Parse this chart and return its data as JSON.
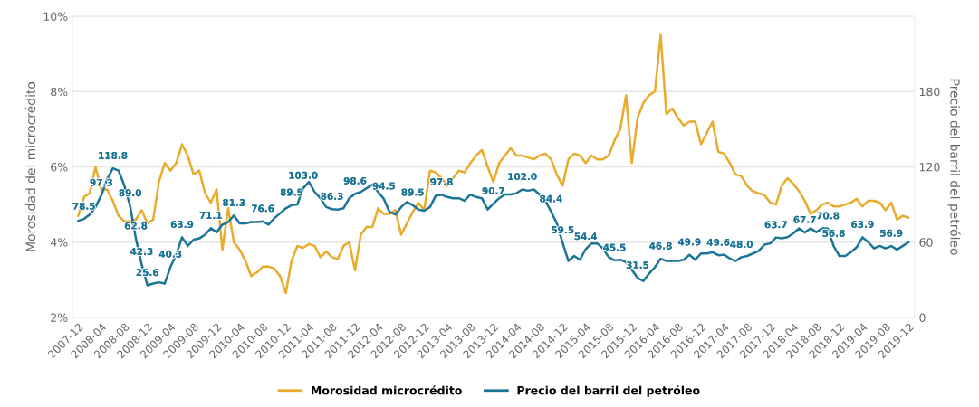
{
  "chart_data": {
    "type": "line",
    "ylabel": "Morosidad del microcrédito",
    "y2label": "Precio del barril del petróleo",
    "categories": [
      "2007-12",
      null,
      null,
      null,
      "2008-04",
      null,
      null,
      null,
      "2008-08",
      null,
      null,
      null,
      "2008-12",
      null,
      null,
      null,
      "2009-04",
      null,
      null,
      null,
      "2009-08",
      null,
      null,
      null,
      "2009-12",
      null,
      null,
      null,
      "2010-04",
      null,
      null,
      null,
      "2010-08",
      null,
      null,
      null,
      "2010-12",
      null,
      null,
      null,
      "2011-04",
      null,
      null,
      null,
      "2011-08",
      null,
      null,
      null,
      "2011-12",
      null,
      null,
      null,
      "2012-04",
      null,
      null,
      null,
      "2012-08",
      null,
      null,
      null,
      "2012-12",
      null,
      null,
      null,
      "2013-04",
      null,
      null,
      null,
      "2013-08",
      null,
      null,
      null,
      "2013-12",
      null,
      null,
      null,
      "2014-04",
      null,
      null,
      null,
      "2014-08",
      null,
      null,
      null,
      "2014-12",
      null,
      null,
      null,
      "2015-04",
      null,
      null,
      null,
      "2015-08",
      null,
      null,
      null,
      "2015-12",
      null,
      null,
      null,
      "2016-04",
      null,
      null,
      null,
      "2016-08",
      null,
      null,
      null,
      "2016-12",
      null,
      null,
      null,
      "2017-04",
      null,
      null,
      null,
      "2017-08",
      null,
      null,
      null,
      "2017-12",
      null,
      null,
      null,
      "2018-04",
      null,
      null,
      null,
      "2018-08",
      null,
      null,
      null,
      "2018-12",
      null,
      null,
      null,
      "2019-04",
      null,
      null,
      null,
      "2019-08",
      null,
      null,
      null,
      "2019-12"
    ],
    "series": [
      {
        "name": "Morosidad microcrédito",
        "color": "#e8ab2c",
        "values": [
          4.7,
          5.2,
          5.3,
          6.0,
          5.4,
          5.4,
          5.1,
          4.7,
          4.55,
          4.55,
          4.6,
          4.85,
          4.5,
          4.6,
          5.6,
          6.1,
          5.9,
          6.1,
          6.6,
          6.3,
          5.8,
          5.9,
          5.3,
          5.05,
          5.4,
          3.8,
          4.9,
          4.0,
          3.8,
          3.5,
          3.1,
          3.2,
          3.35,
          3.35,
          3.3,
          3.1,
          2.65,
          3.5,
          3.9,
          3.85,
          3.95,
          3.9,
          3.6,
          3.75,
          3.6,
          3.55,
          3.9,
          4.0,
          3.25,
          4.2,
          4.4,
          4.4,
          4.9,
          4.75,
          4.75,
          4.85,
          4.2,
          4.5,
          4.8,
          5.05,
          4.85,
          5.9,
          5.85,
          5.7,
          5.5,
          5.7,
          5.9,
          5.85,
          6.1,
          6.3,
          6.45,
          6.0,
          5.6,
          6.1,
          6.3,
          6.5,
          6.3,
          6.3,
          6.25,
          6.2,
          6.3,
          6.35,
          6.2,
          5.8,
          5.5,
          6.2,
          6.35,
          6.3,
          6.1,
          6.3,
          6.2,
          6.2,
          6.3,
          6.7,
          7.0,
          7.9,
          6.1,
          7.3,
          7.7,
          7.9,
          8.0,
          9.5,
          7.4,
          7.55,
          7.3,
          7.1,
          7.2,
          7.2,
          6.6,
          6.9,
          7.2,
          6.4,
          6.35,
          6.1,
          5.8,
          5.75,
          5.5,
          5.35,
          5.3,
          5.25,
          5.05,
          5.0,
          5.5,
          5.7,
          5.55,
          5.35,
          5.1,
          4.75,
          4.85,
          5.0,
          5.05,
          4.95,
          4.95,
          5.0,
          5.05,
          5.15,
          4.95,
          5.1,
          5.1,
          5.05,
          4.85,
          5.05,
          4.6,
          4.7,
          4.65
        ]
      },
      {
        "name": "Precio del barril del petróleo",
        "color": "#1b7596",
        "axis": "y2",
        "values": [
          77,
          78.5,
          82,
          88,
          97.3,
          110,
          118.8,
          117,
          105,
          89.0,
          62.8,
          42.3,
          25.6,
          27,
          28,
          27,
          40.3,
          50,
          63.9,
          57,
          62,
          63,
          66,
          71.1,
          68,
          74,
          76,
          81.3,
          75,
          75,
          76,
          76,
          76.6,
          74,
          79,
          83,
          87,
          89.5,
          90,
          103.0,
          108,
          100,
          95,
          88,
          86.3,
          86,
          87,
          95,
          98.6,
          100,
          103,
          106,
          100,
          94.5,
          84,
          82,
          88,
          92,
          89.5,
          86,
          85,
          88,
          97,
          97.8,
          96,
          95,
          95,
          93,
          98,
          96,
          95,
          86,
          90.7,
          95,
          98,
          98,
          99,
          102.0,
          101,
          102,
          98,
          93,
          84.4,
          75,
          59.5,
          45,
          49,
          46,
          54.4,
          59,
          59,
          55,
          48,
          45.5,
          46,
          44,
          38,
          31.5,
          29,
          35,
          40,
          46.8,
          45,
          45,
          45,
          46,
          49.9,
          46,
          51,
          51,
          52,
          49.6,
          50,
          47,
          45,
          48.0,
          49,
          51,
          53,
          58,
          59,
          63.7,
          63,
          64,
          67,
          71,
          67.7,
          71,
          68,
          71,
          70.8,
          56.8,
          49,
          49,
          52,
          56,
          63.9,
          60,
          55,
          57,
          55,
          56.9,
          54,
          57,
          60
        ],
        "value_labels": [
          null,
          "78.5",
          null,
          null,
          "97.3",
          null,
          "118.8",
          null,
          null,
          "89.0",
          "62.8",
          "42.3",
          "25.6",
          null,
          null,
          null,
          "40.3",
          null,
          "63.9",
          null,
          null,
          null,
          null,
          "71.1",
          null,
          null,
          null,
          "81.3",
          null,
          null,
          null,
          null,
          "76.6",
          null,
          null,
          null,
          null,
          "89.5",
          null,
          "103.0",
          null,
          null,
          null,
          null,
          "86.3",
          null,
          null,
          null,
          "98.6",
          null,
          null,
          null,
          null,
          "94.5",
          null,
          null,
          null,
          null,
          "89.5",
          null,
          null,
          null,
          null,
          "97.8",
          null,
          null,
          null,
          null,
          null,
          null,
          null,
          null,
          "90.7",
          null,
          null,
          null,
          null,
          "102.0",
          null,
          null,
          null,
          null,
          "84.4",
          null,
          "59.5",
          null,
          null,
          null,
          "54.4",
          null,
          null,
          null,
          null,
          "45.5",
          null,
          null,
          null,
          "31.5",
          null,
          null,
          null,
          "46.8",
          null,
          null,
          null,
          null,
          "49.9",
          null,
          null,
          null,
          null,
          "49.6",
          null,
          null,
          null,
          "48.0",
          null,
          null,
          null,
          null,
          null,
          "63.7",
          null,
          null,
          null,
          null,
          "67.7",
          null,
          null,
          null,
          "70.8",
          "56.8",
          null,
          null,
          null,
          null,
          "63.9",
          null,
          null,
          null,
          null,
          "56.9",
          null,
          null,
          null
        ]
      }
    ],
    "ylim": [
      2,
      10
    ],
    "yticks": [
      {
        "value": 2,
        "label": "2%"
      },
      {
        "value": 4,
        "label": "4%"
      },
      {
        "value": 6,
        "label": "6%"
      },
      {
        "value": 8,
        "label": "8%"
      },
      {
        "value": 10,
        "label": "10%"
      }
    ],
    "y2lim": [
      0,
      240
    ],
    "y2ticks": [
      0,
      60,
      120,
      180
    ],
    "grid": "y",
    "legend": "bottom",
    "line_style": "solid"
  }
}
